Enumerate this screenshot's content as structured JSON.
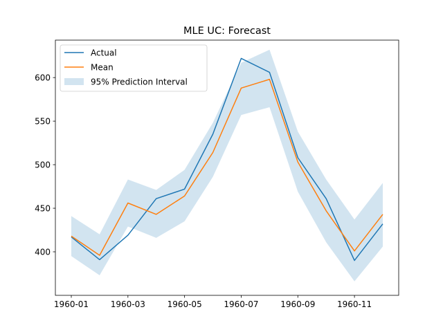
{
  "chart_data": {
    "type": "line",
    "title": "MLE UC: Forecast",
    "xlabel": "",
    "ylabel": "",
    "x": [
      "1960-01",
      "1960-02",
      "1960-03",
      "1960-04",
      "1960-05",
      "1960-06",
      "1960-07",
      "1960-08",
      "1960-09",
      "1960-10",
      "1960-11",
      "1960-12"
    ],
    "xticks": [
      "1960-01",
      "1960-03",
      "1960-05",
      "1960-07",
      "1960-09",
      "1960-11"
    ],
    "yticks": [
      400,
      450,
      500,
      550,
      600
    ],
    "ylim": [
      350,
      643
    ],
    "grid": false,
    "legend_position": "upper-left",
    "series": [
      {
        "name": "Actual",
        "color": "#1f77b4",
        "values": [
          417,
          391,
          419,
          461,
          472,
          535,
          622,
          606,
          508,
          461,
          390,
          432
        ]
      },
      {
        "name": "Mean",
        "color": "#ff7f0e",
        "values": [
          418,
          396,
          456,
          443,
          464,
          514,
          588,
          598,
          503,
          447,
          401,
          443
        ]
      }
    ],
    "interval": {
      "name": "95% Prediction Interval",
      "color": "#1f77b4",
      "lower": [
        395,
        373,
        429,
        416,
        435,
        486,
        557,
        566,
        469,
        411,
        366,
        406
      ],
      "upper": [
        441,
        420,
        483,
        471,
        494,
        548,
        617,
        632,
        538,
        483,
        437,
        479
      ]
    }
  }
}
